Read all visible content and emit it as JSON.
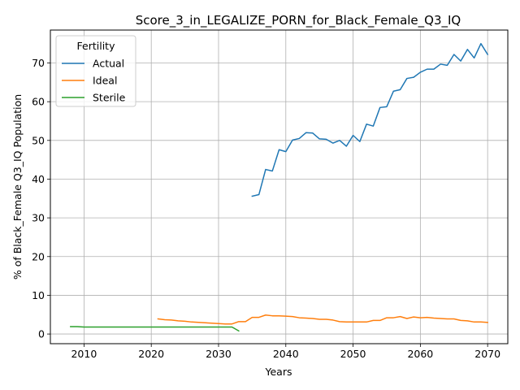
{
  "chart_data": {
    "type": "line",
    "title": "Score_3_in_LEGALIZE_PORN_for_Black_Female_Q3_IQ",
    "xlabel": "Years",
    "ylabel": "% of Black_Female Q3_IQ Population",
    "xlim": [
      2005,
      2073
    ],
    "ylim": [
      -2.5,
      78.5
    ],
    "xticks": [
      2010,
      2020,
      2030,
      2040,
      2050,
      2060,
      2070
    ],
    "yticks": [
      0,
      10,
      20,
      30,
      40,
      50,
      60,
      70
    ],
    "grid": true,
    "legend": {
      "title": "Fertility",
      "position": "top-left"
    },
    "series": [
      {
        "name": "Actual",
        "color": "#1f77b4",
        "points": [
          [
            2035,
            35.6
          ],
          [
            2036,
            36.0
          ],
          [
            2037,
            42.5
          ],
          [
            2038,
            42.1
          ],
          [
            2039,
            47.6
          ],
          [
            2040,
            47.1
          ],
          [
            2041,
            50.1
          ],
          [
            2042,
            50.5
          ],
          [
            2043,
            52.0
          ],
          [
            2044,
            51.9
          ],
          [
            2045,
            50.4
          ],
          [
            2046,
            50.3
          ],
          [
            2047,
            49.3
          ],
          [
            2048,
            50.0
          ],
          [
            2049,
            48.5
          ],
          [
            2050,
            51.3
          ],
          [
            2051,
            49.7
          ],
          [
            2052,
            54.2
          ],
          [
            2053,
            53.7
          ],
          [
            2054,
            58.5
          ],
          [
            2055,
            58.7
          ],
          [
            2056,
            62.7
          ],
          [
            2057,
            63.1
          ],
          [
            2058,
            66.0
          ],
          [
            2059,
            66.3
          ],
          [
            2060,
            67.6
          ],
          [
            2061,
            68.4
          ],
          [
            2062,
            68.4
          ],
          [
            2063,
            69.7
          ],
          [
            2064,
            69.4
          ],
          [
            2065,
            72.2
          ],
          [
            2066,
            70.5
          ],
          [
            2067,
            73.5
          ],
          [
            2068,
            71.3
          ],
          [
            2069,
            75.0
          ],
          [
            2070,
            72.2
          ]
        ]
      },
      {
        "name": "Ideal",
        "color": "#ff7f0e",
        "points": [
          [
            2021,
            3.9
          ],
          [
            2022,
            3.7
          ],
          [
            2023,
            3.6
          ],
          [
            2024,
            3.4
          ],
          [
            2025,
            3.3
          ],
          [
            2026,
            3.1
          ],
          [
            2027,
            3.0
          ],
          [
            2028,
            2.9
          ],
          [
            2029,
            2.8
          ],
          [
            2030,
            2.7
          ],
          [
            2031,
            2.6
          ],
          [
            2032,
            2.6
          ],
          [
            2033,
            3.2
          ],
          [
            2034,
            3.2
          ],
          [
            2035,
            4.3
          ],
          [
            2036,
            4.3
          ],
          [
            2037,
            4.9
          ],
          [
            2038,
            4.7
          ],
          [
            2039,
            4.7
          ],
          [
            2040,
            4.6
          ],
          [
            2041,
            4.5
          ],
          [
            2042,
            4.2
          ],
          [
            2043,
            4.1
          ],
          [
            2044,
            4.0
          ],
          [
            2045,
            3.8
          ],
          [
            2046,
            3.8
          ],
          [
            2047,
            3.6
          ],
          [
            2048,
            3.2
          ],
          [
            2049,
            3.1
          ],
          [
            2050,
            3.1
          ],
          [
            2051,
            3.1
          ],
          [
            2052,
            3.1
          ],
          [
            2053,
            3.5
          ],
          [
            2054,
            3.5
          ],
          [
            2055,
            4.2
          ],
          [
            2056,
            4.2
          ],
          [
            2057,
            4.5
          ],
          [
            2058,
            4.0
          ],
          [
            2059,
            4.4
          ],
          [
            2060,
            4.2
          ],
          [
            2061,
            4.3
          ],
          [
            2062,
            4.1
          ],
          [
            2063,
            4.0
          ],
          [
            2064,
            3.9
          ],
          [
            2065,
            3.9
          ],
          [
            2066,
            3.5
          ],
          [
            2067,
            3.4
          ],
          [
            2068,
            3.1
          ],
          [
            2069,
            3.1
          ],
          [
            2070,
            3.0
          ]
        ]
      },
      {
        "name": "Sterile",
        "color": "#2ca02c",
        "points": [
          [
            2008,
            1.9
          ],
          [
            2009,
            1.9
          ],
          [
            2010,
            1.8
          ],
          [
            2011,
            1.8
          ],
          [
            2012,
            1.8
          ],
          [
            2013,
            1.8
          ],
          [
            2014,
            1.8
          ],
          [
            2015,
            1.8
          ],
          [
            2016,
            1.8
          ],
          [
            2017,
            1.8
          ],
          [
            2018,
            1.8
          ],
          [
            2019,
            1.8
          ],
          [
            2020,
            1.8
          ],
          [
            2021,
            1.8
          ],
          [
            2022,
            1.8
          ],
          [
            2023,
            1.8
          ],
          [
            2024,
            1.8
          ],
          [
            2025,
            1.8
          ],
          [
            2026,
            1.8
          ],
          [
            2027,
            1.8
          ],
          [
            2028,
            1.8
          ],
          [
            2029,
            1.8
          ],
          [
            2030,
            1.8
          ],
          [
            2031,
            1.8
          ],
          [
            2032,
            1.8
          ],
          [
            2033,
            0.8
          ]
        ]
      }
    ]
  }
}
